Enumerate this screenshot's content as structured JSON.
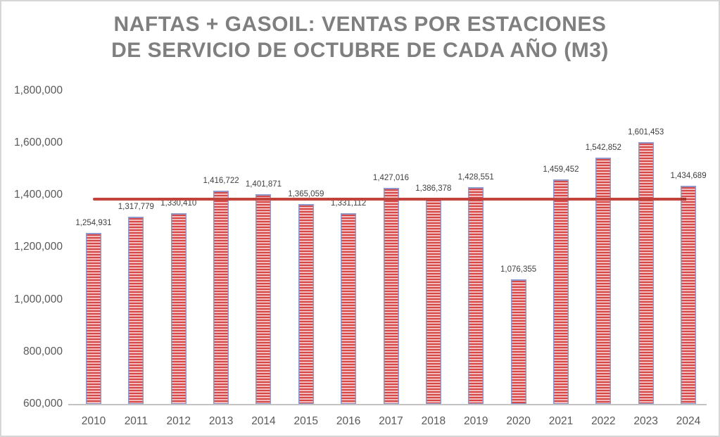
{
  "chart_data": {
    "type": "bar",
    "title": "NAFTAS + GASOIL: VENTAS POR ESTACIONES DE SERVICIO DE OCTUBRE DE CADA AÑO (M3)",
    "title_lines": [
      "NAFTAS + GASOIL: VENTAS POR ESTACIONES",
      "DE SERVICIO DE OCTUBRE DE CADA AÑO (M3)"
    ],
    "categories": [
      "2010",
      "2011",
      "2012",
      "2013",
      "2014",
      "2015",
      "2016",
      "2017",
      "2018",
      "2019",
      "2020",
      "2021",
      "2022",
      "2023",
      "2024"
    ],
    "values": [
      1254931,
      1317779,
      1330410,
      1416722,
      1401871,
      1365059,
      1331112,
      1427016,
      1386378,
      1428551,
      1076355,
      1459452,
      1542852,
      1601453,
      1434689
    ],
    "data_labels": [
      "1,254,931",
      "1,317,779",
      "1,330,410",
      "1,416,722",
      "1,401,871",
      "1,365,059",
      "1,331,112",
      "1,427,016",
      "1,386,378",
      "1,428,551",
      "1,076,355",
      "1,459,452",
      "1,542,852",
      "1,601,453",
      "1,434,689"
    ],
    "xlabel": "",
    "ylabel": "",
    "ylim": [
      600000,
      1800000
    ],
    "y_tick_step": 200000,
    "y_tick_labels": [
      "600,000",
      "800,000",
      "1,000,000",
      "1,200,000",
      "1,400,000",
      "1,600,000",
      "1,800,000"
    ],
    "grid": false,
    "legend": null,
    "reference_line": {
      "type": "average",
      "value": 1384975,
      "color": "#c2423c"
    },
    "colors": {
      "title": "#7f7f7f",
      "axis_labels": "#595959",
      "data_labels": "#3f3f3f",
      "bar_stripe": "#d64848",
      "bar_stripe_light": "#f2bcbc",
      "bar_border": "#9097cb",
      "axis_line": "#c3c3c3",
      "reference_line": "#c2423c",
      "reference_line_tip": "#a6352f",
      "frame_border": "#d6d6d6"
    }
  }
}
